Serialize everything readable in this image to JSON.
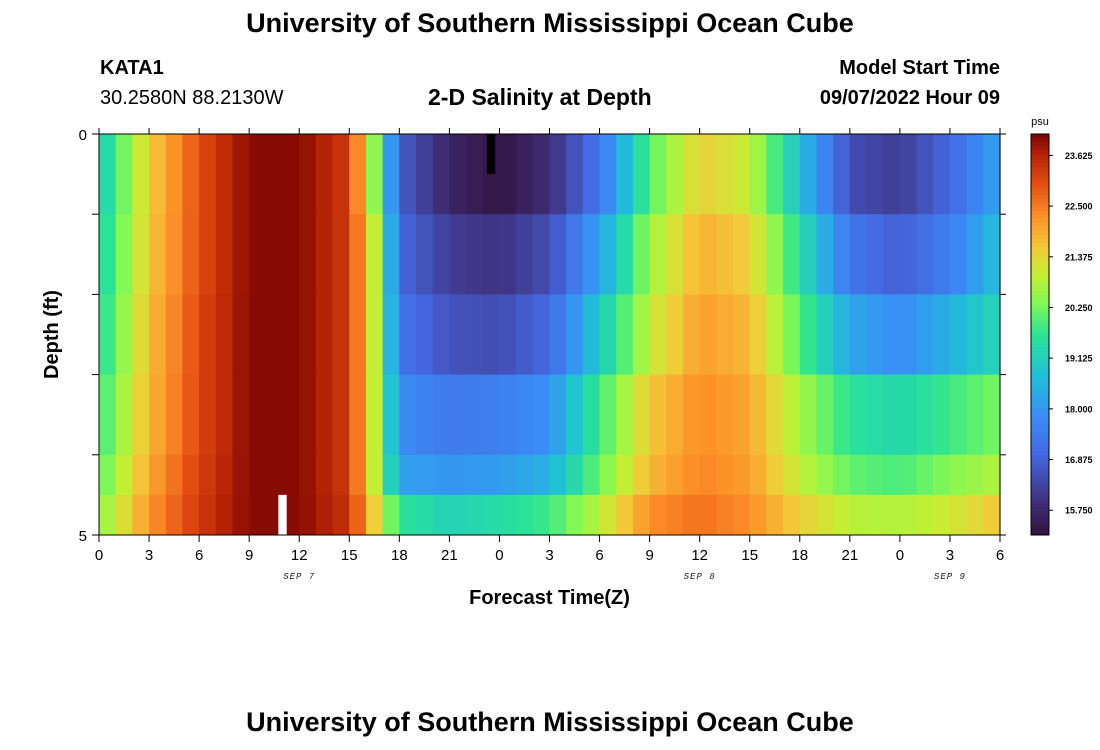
{
  "header": {
    "title": "University of Southern Mississippi Ocean Cube",
    "station_id": "KATA1",
    "coordinates": "30.2580N  88.2130W",
    "chart_title": "2-D Salinity at Depth",
    "model_start_label": "Model Start Time",
    "model_start_value": "09/07/2022 Hour 09"
  },
  "footer": {
    "title": "University of Southern Mississippi Ocean Cube"
  },
  "chart_data": {
    "type": "heatmap",
    "title": "2-D Salinity at Depth",
    "xlabel": "Forecast Time(Z)",
    "ylabel": "Depth (ft)",
    "x_hours_start": 0,
    "x_hours_end": 54,
    "x_ticks": [
      "0",
      "3",
      "6",
      "9",
      "12",
      "15",
      "18",
      "21",
      "0",
      "3",
      "6",
      "9",
      "12",
      "15",
      "18",
      "21",
      "0",
      "3",
      "6"
    ],
    "date_labels": [
      {
        "label": "SEP 7",
        "at_hour": 12
      },
      {
        "label": "SEP 8",
        "at_hour": 36
      },
      {
        "label": "SEP 9",
        "at_hour": 51
      }
    ],
    "y_tick_labels": [
      "0",
      "5"
    ],
    "y_range": [
      0,
      5
    ],
    "depth_levels": [
      0,
      1,
      2,
      3,
      4,
      5
    ],
    "colorbar": {
      "unit": "psu",
      "min": 15.2,
      "max": 24.1,
      "tick_labels": [
        "23.625",
        "22.500",
        "21.375",
        "20.250",
        "19.125",
        "18.000",
        "16.875",
        "15.750"
      ],
      "tick_values": [
        23.625,
        22.5,
        21.375,
        20.25,
        19.125,
        18.0,
        16.875,
        15.75
      ]
    },
    "salinity_by_depth": [
      {
        "depth": 0.0,
        "hours": [
          0,
          3,
          6,
          9,
          12,
          15,
          16.5,
          18,
          21,
          24,
          27,
          30,
          33,
          36,
          39,
          42,
          45,
          48,
          51,
          54
        ],
        "values": [
          19.0,
          21.5,
          23.0,
          24.0,
          24.0,
          23.3,
          20.5,
          16.8,
          15.7,
          15.3,
          15.9,
          17.3,
          20.0,
          21.5,
          21.0,
          18.8,
          16.5,
          16.2,
          17.0,
          18.3
        ]
      },
      {
        "depth": 1.0,
        "hours": [
          0,
          3,
          6,
          9,
          12,
          15,
          16.5,
          18,
          21,
          24,
          27,
          30,
          33,
          36,
          39,
          42,
          45,
          48,
          51,
          54
        ],
        "values": [
          19.2,
          21.6,
          23.0,
          24.0,
          24.0,
          23.3,
          21.0,
          17.0,
          16.2,
          16.0,
          16.5,
          18.2,
          20.6,
          21.9,
          21.5,
          19.5,
          17.3,
          16.8,
          17.5,
          18.8
        ]
      },
      {
        "depth": 2.0,
        "hours": [
          0,
          3,
          6,
          9,
          12,
          15,
          16.5,
          18,
          21,
          24,
          27,
          30,
          33,
          36,
          39,
          42,
          45,
          48,
          51,
          54
        ],
        "values": [
          19.4,
          21.7,
          23.1,
          24.0,
          24.0,
          23.3,
          21.0,
          17.3,
          16.6,
          16.5,
          17.0,
          19.0,
          21.0,
          22.1,
          21.8,
          20.0,
          18.3,
          17.8,
          18.5,
          19.3
        ]
      },
      {
        "depth": 3.0,
        "hours": [
          0,
          3,
          6,
          9,
          12,
          15,
          16.5,
          18,
          21,
          24,
          27,
          30,
          33,
          36,
          39,
          42,
          45,
          48,
          51,
          54
        ],
        "values": [
          19.7,
          21.8,
          23.1,
          24.0,
          24.0,
          23.3,
          21.0,
          17.8,
          17.4,
          17.5,
          17.9,
          19.8,
          21.6,
          22.3,
          22.0,
          20.7,
          19.6,
          19.3,
          19.8,
          20.3
        ]
      },
      {
        "depth": 4.0,
        "hours": [
          0,
          3,
          6,
          9,
          12,
          15,
          16.5,
          18,
          21,
          24,
          27,
          30,
          33,
          36,
          39,
          42,
          45,
          48,
          51,
          54
        ],
        "values": [
          20.0,
          22.0,
          23.2,
          24.0,
          24.0,
          23.3,
          21.0,
          18.2,
          18.0,
          18.1,
          18.5,
          20.2,
          21.8,
          22.4,
          22.1,
          21.0,
          20.1,
          19.9,
          20.4,
          20.8
        ]
      },
      {
        "depth": 4.5,
        "hours": [
          0,
          3,
          6,
          9,
          12,
          15,
          16.5,
          18,
          21,
          24,
          27,
          30,
          33,
          36,
          39,
          42,
          45,
          48,
          51,
          54
        ],
        "values": [
          20.4,
          22.2,
          23.3,
          24.0,
          24.0,
          23.4,
          21.5,
          19.6,
          19.2,
          19.4,
          19.8,
          20.9,
          22.3,
          22.6,
          22.3,
          21.5,
          20.9,
          20.8,
          21.1,
          21.6
        ]
      }
    ],
    "annotations": [
      {
        "type": "black-bar",
        "hour": 23.5,
        "depth_range": [
          0,
          0.5
        ],
        "color": "#000000"
      },
      {
        "type": "white-bar",
        "hour": 11.0,
        "depth_range": [
          4.5,
          5
        ],
        "color": "#ffffff"
      }
    ],
    "grid": false,
    "colormap": "turbo"
  }
}
